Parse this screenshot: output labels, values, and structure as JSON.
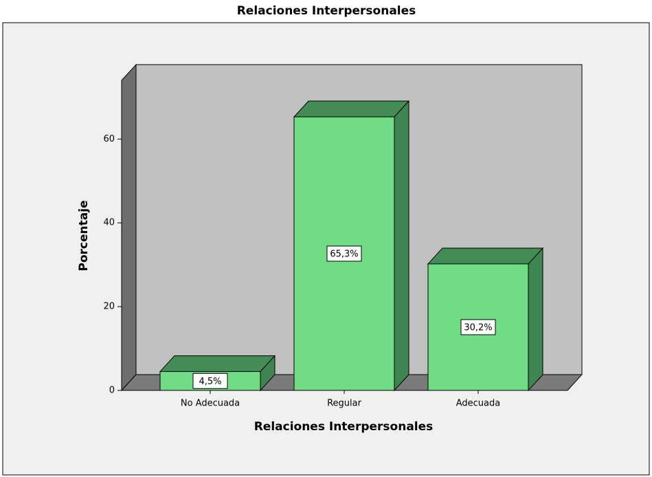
{
  "chart_data": {
    "type": "bar",
    "title": "Relaciones Interpersonales",
    "x_label": "Relaciones Interpersonales",
    "y_label": "Porcentaje",
    "categories": [
      "No Adecuada",
      "Regular",
      "Adecuada"
    ],
    "values": [
      4.5,
      65.3,
      30.2
    ],
    "value_labels": [
      "4,5%",
      "65,3%",
      "30,2%"
    ],
    "color": "#70dc84",
    "ylim": [
      0,
      74
    ],
    "yticks": [
      0,
      20,
      40,
      60
    ]
  }
}
